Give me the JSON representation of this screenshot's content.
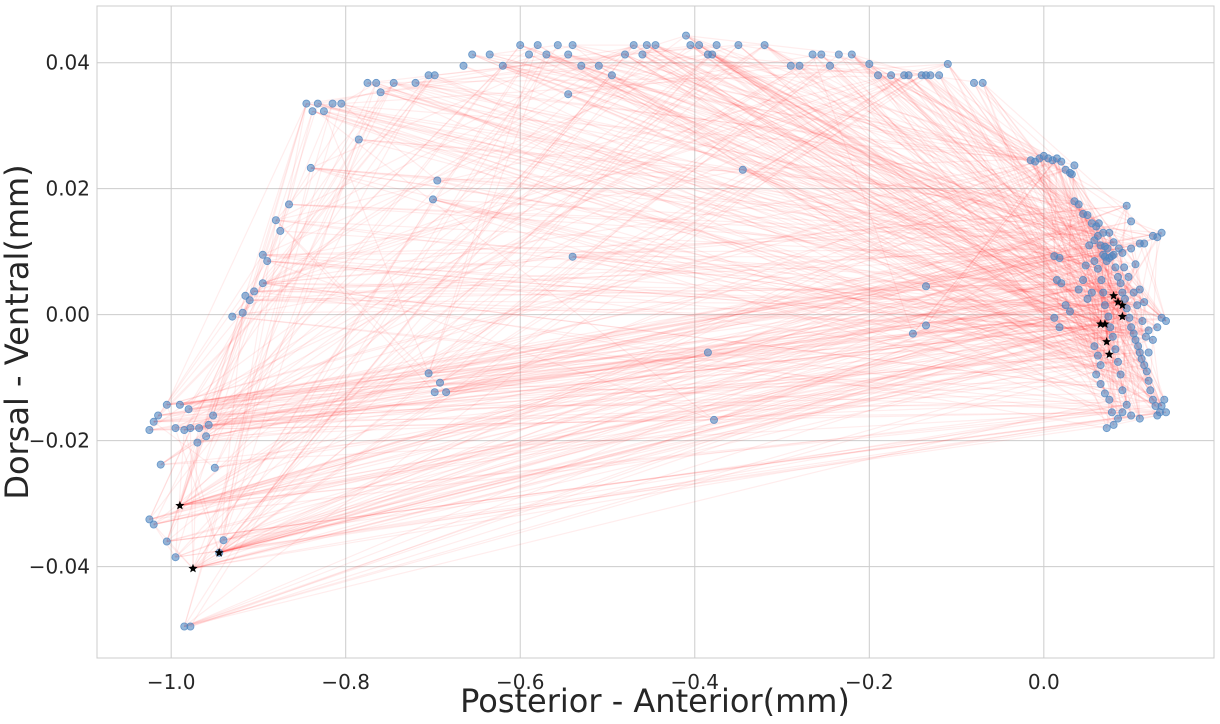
{
  "chart_data": {
    "type": "scatter",
    "xlabel": "Posterior - Anterior(mm)",
    "ylabel": "Dorsal - Ventral(mm)",
    "xlim": [
      -1.085,
      0.195
    ],
    "ylim": [
      -0.0545,
      0.049
    ],
    "x_ticks": [
      -1.0,
      -0.8,
      -0.6,
      -0.4,
      -0.2,
      0.0
    ],
    "x_tick_labels": [
      "−1.0",
      "−0.8",
      "−0.6",
      "−0.4",
      "−0.2",
      "0.0"
    ],
    "y_ticks": [
      -0.04,
      -0.02,
      0.0,
      0.02,
      0.04
    ],
    "y_tick_labels": [
      "−0.04",
      "−0.02",
      "0.00",
      "0.02",
      "0.04"
    ],
    "grid": true,
    "colors": {
      "points": "#4f86c0",
      "connections": "#ff3b3b",
      "markers": "#000000",
      "grid": "#cccccc",
      "axes": "#cccccc"
    },
    "series": [
      {
        "kind": "points",
        "points": [
          [
            -1.025,
            -0.0325
          ],
          [
            -1.02,
            -0.0333
          ],
          [
            -1.012,
            -0.0238
          ],
          [
            -1.005,
            -0.036
          ],
          [
            -0.995,
            -0.0385
          ],
          [
            -1.025,
            -0.0183
          ],
          [
            -1.02,
            -0.017
          ],
          [
            -1.015,
            -0.016
          ],
          [
            -1.005,
            -0.0143
          ],
          [
            -0.995,
            -0.018
          ],
          [
            -0.99,
            -0.0143
          ],
          [
            -0.985,
            -0.0183
          ],
          [
            -0.98,
            -0.015
          ],
          [
            -0.978,
            -0.018
          ],
          [
            -0.97,
            -0.0203
          ],
          [
            -0.968,
            -0.018
          ],
          [
            -0.96,
            -0.0193
          ],
          [
            -0.957,
            -0.0175
          ],
          [
            -0.952,
            -0.016
          ],
          [
            -0.95,
            -0.0243
          ],
          [
            -0.945,
            -0.0378
          ],
          [
            -0.94,
            -0.0358
          ],
          [
            -0.985,
            -0.0495
          ],
          [
            -0.978,
            -0.0495
          ],
          [
            -0.93,
            -0.0003
          ],
          [
            -0.918,
            0.0003
          ],
          [
            -0.915,
            0.003
          ],
          [
            -0.91,
            0.0023
          ],
          [
            -0.905,
            0.0037
          ],
          [
            -0.895,
            0.005
          ],
          [
            -0.895,
            0.0095
          ],
          [
            -0.89,
            0.0085
          ],
          [
            -0.88,
            0.015
          ],
          [
            -0.875,
            0.0133
          ],
          [
            -0.865,
            0.0175
          ],
          [
            -0.84,
            0.0233
          ],
          [
            -0.845,
            0.0335
          ],
          [
            -0.838,
            0.0323
          ],
          [
            -0.832,
            0.0335
          ],
          [
            -0.825,
            0.0323
          ],
          [
            -0.815,
            0.0335
          ],
          [
            -0.805,
            0.0335
          ],
          [
            -0.785,
            0.0278
          ],
          [
            -0.775,
            0.0368
          ],
          [
            -0.765,
            0.0368
          ],
          [
            -0.76,
            0.0353
          ],
          [
            -0.745,
            0.0368
          ],
          [
            -0.72,
            0.0368
          ],
          [
            -0.705,
            0.038
          ],
          [
            -0.698,
            0.038
          ],
          [
            -0.7,
            0.0183
          ],
          [
            -0.695,
            0.0213
          ],
          [
            -0.705,
            -0.0093
          ],
          [
            -0.698,
            -0.0123
          ],
          [
            -0.692,
            -0.0108
          ],
          [
            -0.685,
            -0.0123
          ],
          [
            -0.665,
            0.0395
          ],
          [
            -0.655,
            0.0413
          ],
          [
            -0.635,
            0.0413
          ],
          [
            -0.62,
            0.0395
          ],
          [
            -0.6,
            0.0428
          ],
          [
            -0.59,
            0.0413
          ],
          [
            -0.58,
            0.0428
          ],
          [
            -0.57,
            0.0413
          ],
          [
            -0.557,
            0.0428
          ],
          [
            -0.545,
            0.035
          ],
          [
            -0.545,
            0.0413
          ],
          [
            -0.54,
            0.0092
          ],
          [
            -0.54,
            0.0428
          ],
          [
            -0.53,
            0.0395
          ],
          [
            -0.51,
            0.0395
          ],
          [
            -0.495,
            0.038
          ],
          [
            -0.48,
            0.0413
          ],
          [
            -0.47,
            0.0428
          ],
          [
            -0.46,
            0.0413
          ],
          [
            -0.455,
            0.0428
          ],
          [
            -0.445,
            0.0428
          ],
          [
            -0.41,
            0.0443
          ],
          [
            -0.405,
            0.0428
          ],
          [
            -0.395,
            0.0428
          ],
          [
            -0.385,
            0.0413
          ],
          [
            -0.38,
            0.0413
          ],
          [
            -0.375,
            0.0428
          ],
          [
            -0.35,
            0.0428
          ],
          [
            -0.345,
            0.023
          ],
          [
            -0.32,
            0.0428
          ],
          [
            -0.385,
            -0.006
          ],
          [
            -0.378,
            -0.0167
          ],
          [
            -0.29,
            0.0395
          ],
          [
            -0.28,
            0.0395
          ],
          [
            -0.265,
            0.0413
          ],
          [
            -0.255,
            0.0413
          ],
          [
            -0.245,
            0.0395
          ],
          [
            -0.235,
            0.0413
          ],
          [
            -0.22,
            0.0413
          ],
          [
            -0.2,
            0.0398
          ],
          [
            -0.19,
            0.038
          ],
          [
            -0.175,
            0.038
          ],
          [
            -0.16,
            0.038
          ],
          [
            -0.155,
            0.038
          ],
          [
            -0.14,
            0.038
          ],
          [
            -0.135,
            0.038
          ],
          [
            -0.13,
            0.038
          ],
          [
            -0.12,
            0.038
          ],
          [
            -0.11,
            0.0398
          ],
          [
            -0.08,
            0.0368
          ],
          [
            -0.07,
            0.0368
          ],
          [
            -0.135,
            0.0045
          ],
          [
            -0.135,
            -0.0017
          ],
          [
            -0.15,
            -0.003
          ],
          [
            -0.015,
            0.0245
          ],
          [
            -0.01,
            0.0243
          ],
          [
            -0.005,
            0.0248
          ],
          [
            0.0,
            0.0252
          ],
          [
            0.005,
            0.0248
          ],
          [
            0.01,
            0.0245
          ],
          [
            0.015,
            0.0248
          ],
          [
            0.02,
            0.0243
          ],
          [
            0.025,
            0.023
          ],
          [
            0.03,
            0.0225
          ],
          [
            0.032,
            0.0223
          ],
          [
            0.035,
            0.0237
          ],
          [
            0.035,
            0.018
          ],
          [
            0.04,
            0.0175
          ],
          [
            0.045,
            0.016
          ],
          [
            0.05,
            0.0158
          ],
          [
            0.055,
            0.0145
          ],
          [
            0.06,
            0.014
          ],
          [
            0.062,
            0.0125
          ],
          [
            0.065,
            0.011
          ],
          [
            0.068,
            0.0095
          ],
          [
            0.07,
            0.0092
          ],
          [
            0.072,
            0.0085
          ],
          [
            0.075,
            0.009
          ],
          [
            0.078,
            0.0093
          ],
          [
            0.08,
            0.0095
          ],
          [
            0.082,
            0.0075
          ],
          [
            0.085,
            0.006
          ],
          [
            0.088,
            0.005
          ],
          [
            0.09,
            0.0035
          ],
          [
            0.093,
            0.0025
          ],
          [
            0.095,
            0.001
          ],
          [
            0.098,
            -0.0005
          ],
          [
            0.1,
            -0.002
          ],
          [
            0.103,
            -0.003
          ],
          [
            0.105,
            -0.004
          ],
          [
            0.108,
            -0.005
          ],
          [
            0.11,
            -0.006
          ],
          [
            0.112,
            -0.007
          ],
          [
            0.115,
            -0.008
          ],
          [
            0.118,
            -0.009
          ],
          [
            0.12,
            -0.0105
          ],
          [
            0.122,
            -0.012
          ],
          [
            0.125,
            -0.0135
          ],
          [
            0.128,
            -0.0145
          ],
          [
            0.13,
            -0.016
          ],
          [
            0.133,
            -0.0155
          ],
          [
            0.135,
            -0.0145
          ],
          [
            0.06,
            -0.0095
          ],
          [
            0.065,
            -0.011
          ],
          [
            0.07,
            -0.0125
          ],
          [
            0.075,
            -0.0135
          ],
          [
            0.078,
            -0.0155
          ],
          [
            0.072,
            -0.018
          ],
          [
            0.08,
            -0.0175
          ],
          [
            0.085,
            -0.0165
          ],
          [
            0.09,
            -0.0155
          ],
          [
            0.095,
            -0.0143
          ],
          [
            0.1,
            -0.016
          ],
          [
            0.11,
            -0.0165
          ],
          [
            0.14,
            -0.0155
          ],
          [
            0.138,
            -0.0135
          ],
          [
            0.14,
            -0.001
          ],
          [
            0.135,
            -0.0005
          ],
          [
            0.13,
            -0.002
          ],
          [
            0.125,
            -0.004
          ],
          [
            0.12,
            -0.0025
          ],
          [
            0.115,
            0.002
          ],
          [
            0.11,
            0.004
          ],
          [
            0.105,
            0.008
          ],
          [
            0.1,
            0.0105
          ],
          [
            0.11,
            0.0113
          ],
          [
            0.115,
            0.0113
          ],
          [
            0.125,
            0.0125
          ],
          [
            0.13,
            0.0123
          ],
          [
            0.135,
            0.013
          ],
          [
            0.095,
            0.0173
          ],
          [
            0.1,
            0.0148
          ],
          [
            0.05,
            0.0025
          ],
          [
            0.055,
            0.0035
          ],
          [
            0.045,
            0.0055
          ],
          [
            0.012,
            0.0093
          ],
          [
            0.018,
            0.009
          ],
          [
            0.015,
            0.0055
          ],
          [
            0.02,
            0.005
          ],
          [
            0.012,
            -0.0005
          ],
          [
            0.018,
            -0.002
          ],
          [
            0.025,
            0.0015
          ],
          [
            0.03,
            0.0005
          ],
          [
            0.04,
            0.004
          ],
          [
            0.048,
            0.0078
          ],
          [
            0.058,
            0.0085
          ],
          [
            0.062,
            0.0073
          ],
          [
            0.066,
            0.0055
          ],
          [
            0.068,
            0.0035
          ],
          [
            0.07,
            0.0015
          ],
          [
            0.074,
            -0.0003
          ],
          [
            0.076,
            -0.002
          ],
          [
            0.079,
            -0.0035
          ],
          [
            0.082,
            -0.0055
          ],
          [
            0.085,
            -0.0075
          ],
          [
            0.088,
            -0.0095
          ],
          [
            0.09,
            -0.012
          ],
          [
            0.058,
            -0.005
          ],
          [
            0.062,
            -0.0065
          ],
          [
            0.065,
            -0.008
          ],
          [
            0.092,
            0.0075
          ],
          [
            0.097,
            0.006
          ],
          [
            0.103,
            0.0035
          ],
          [
            0.107,
            0.0015
          ],
          [
            0.113,
            -0.001
          ],
          [
            0.117,
            -0.0035
          ],
          [
            0.12,
            -0.006
          ],
          [
            0.075,
            0.013
          ],
          [
            0.08,
            0.0115
          ],
          [
            0.086,
            0.0105
          ],
          [
            0.09,
            0.0098
          ],
          [
            0.052,
            0.011
          ],
          [
            0.058,
            0.0118
          ],
          [
            0.063,
            0.0145
          ],
          [
            0.068,
            0.013
          ],
          [
            0.07,
            0.0108
          ],
          [
            0.073,
            0.0105
          ]
        ]
      },
      {
        "kind": "markers",
        "points": [
          [
            -0.99,
            -0.0303
          ],
          [
            -0.975,
            -0.0403
          ],
          [
            -0.945,
            -0.0378
          ],
          [
            0.08,
            0.003
          ],
          [
            0.085,
            0.002
          ],
          [
            0.09,
            0.0015
          ],
          [
            0.09,
            -0.0003
          ],
          [
            0.07,
            -0.0015
          ],
          [
            0.065,
            -0.0015
          ],
          [
            0.072,
            -0.0043
          ],
          [
            0.075,
            -0.0063
          ]
        ]
      }
    ]
  }
}
